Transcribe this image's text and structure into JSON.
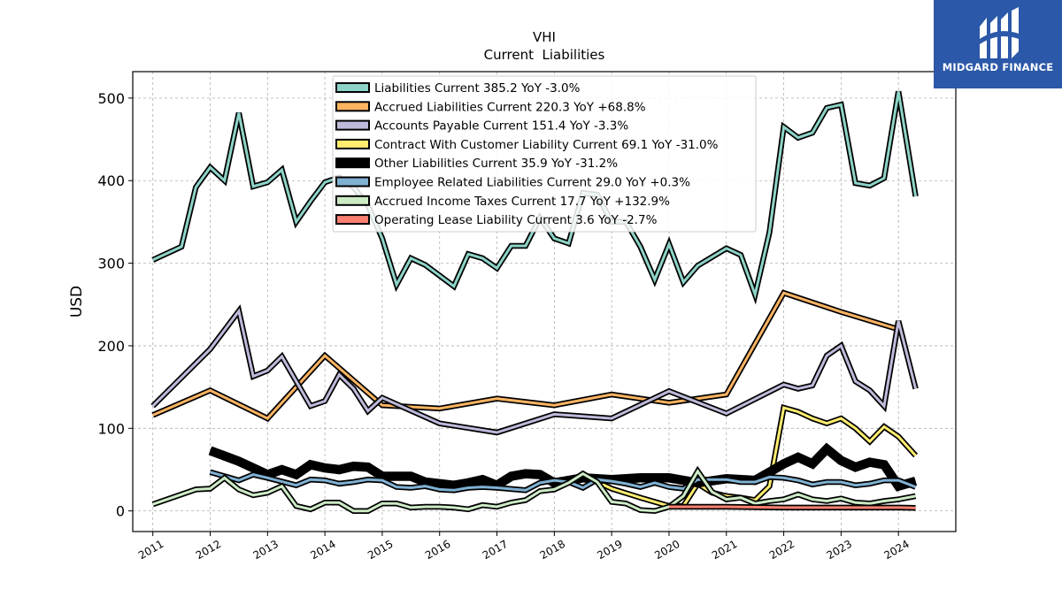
{
  "brand": {
    "name": "MIDGARD FINANCE",
    "color": "#2b58a8"
  },
  "chart_data": {
    "type": "line",
    "title": "VHI",
    "subtitle": "Current  Liabilities",
    "ylabel": "USD",
    "xlabel": "",
    "xlim": [
      2010.65,
      2025.0
    ],
    "ylim": [
      -25,
      532
    ],
    "yticks": [
      0,
      100,
      200,
      300,
      400,
      500
    ],
    "xticks": [
      2011,
      2012,
      2013,
      2014,
      2015,
      2016,
      2017,
      2018,
      2019,
      2020,
      2021,
      2022,
      2023,
      2024
    ],
    "grid": true,
    "legend_position": "top-center",
    "series": [
      {
        "name": "Liabilities Current  385.2 YoY -3.0%",
        "color": "#8dd3c7",
        "width": 3,
        "points": [
          [
            2011.0,
            304
          ],
          [
            2011.5,
            320
          ],
          [
            2011.75,
            392
          ],
          [
            2012.0,
            416
          ],
          [
            2012.25,
            400
          ],
          [
            2012.5,
            482
          ],
          [
            2012.75,
            393
          ],
          [
            2013.0,
            398
          ],
          [
            2013.25,
            413
          ],
          [
            2013.5,
            350
          ],
          [
            2013.75,
            375
          ],
          [
            2014.0,
            398
          ],
          [
            2014.25,
            404
          ],
          [
            2014.5,
            392
          ],
          [
            2014.75,
            370
          ],
          [
            2015.0,
            330
          ],
          [
            2015.25,
            274
          ],
          [
            2015.5,
            306
          ],
          [
            2015.75,
            298
          ],
          [
            2016.0,
            285
          ],
          [
            2016.25,
            272
          ],
          [
            2016.5,
            311
          ],
          [
            2016.75,
            306
          ],
          [
            2017.0,
            294
          ],
          [
            2017.25,
            321
          ],
          [
            2017.5,
            321
          ],
          [
            2017.75,
            355
          ],
          [
            2018.0,
            330
          ],
          [
            2018.25,
            324
          ],
          [
            2018.5,
            385
          ],
          [
            2018.75,
            383
          ],
          [
            2019.0,
            350
          ],
          [
            2019.25,
            350
          ],
          [
            2019.5,
            320
          ],
          [
            2019.75,
            280
          ],
          [
            2020.0,
            323
          ],
          [
            2020.25,
            277
          ],
          [
            2020.5,
            297
          ],
          [
            2021.0,
            318
          ],
          [
            2021.25,
            310
          ],
          [
            2021.5,
            262
          ],
          [
            2021.75,
            337
          ],
          [
            2022.0,
            465
          ],
          [
            2022.25,
            452
          ],
          [
            2022.5,
            458
          ],
          [
            2022.75,
            488
          ],
          [
            2023.0,
            492
          ],
          [
            2023.25,
            397
          ],
          [
            2023.5,
            394
          ],
          [
            2023.75,
            403
          ],
          [
            2024.0,
            508
          ],
          [
            2024.3,
            381
          ]
        ]
      },
      {
        "name": "Accrued Liabilities Current  220.3 YoY +68.8%",
        "color": "#fdb462",
        "width": 3,
        "points": [
          [
            2011.0,
            116
          ],
          [
            2012.0,
            146
          ],
          [
            2013.0,
            112
          ],
          [
            2014.0,
            188
          ],
          [
            2015.0,
            128
          ],
          [
            2016.0,
            124
          ],
          [
            2017.0,
            136
          ],
          [
            2018.0,
            128
          ],
          [
            2019.0,
            141
          ],
          [
            2020.0,
            131
          ],
          [
            2021.0,
            141
          ],
          [
            2022.0,
            264
          ],
          [
            2023.0,
            241
          ],
          [
            2024.0,
            220
          ]
        ]
      },
      {
        "name": "Accounts Payable Current  151.4 YoY -3.3%",
        "color": "#bebada",
        "width": 3,
        "points": [
          [
            2011.0,
            127
          ],
          [
            2012.0,
            196
          ],
          [
            2012.5,
            242
          ],
          [
            2012.75,
            163
          ],
          [
            2013.0,
            170
          ],
          [
            2013.25,
            187
          ],
          [
            2013.75,
            127
          ],
          [
            2014.0,
            133
          ],
          [
            2014.25,
            165
          ],
          [
            2014.5,
            148
          ],
          [
            2014.75,
            121
          ],
          [
            2015.0,
            137
          ],
          [
            2016.0,
            106
          ],
          [
            2017.0,
            95
          ],
          [
            2018.0,
            117
          ],
          [
            2019.0,
            112
          ],
          [
            2020.0,
            145
          ],
          [
            2021.0,
            118
          ],
          [
            2022.0,
            153
          ],
          [
            2022.25,
            148
          ],
          [
            2022.5,
            152
          ],
          [
            2022.75,
            188
          ],
          [
            2023.0,
            200
          ],
          [
            2023.25,
            157
          ],
          [
            2023.5,
            146
          ],
          [
            2023.75,
            127
          ],
          [
            2024.0,
            230
          ],
          [
            2024.3,
            148
          ]
        ]
      },
      {
        "name": "Contract With Customer Liability Current  69.1 YoY -31.0%",
        "color": "#ffed6f",
        "width": 3,
        "points": [
          [
            2018.5,
            43
          ],
          [
            2019.0,
            27
          ],
          [
            2019.5,
            16
          ],
          [
            2019.75,
            11
          ],
          [
            2020.0,
            6
          ],
          [
            2020.25,
            6
          ],
          [
            2020.5,
            33
          ],
          [
            2020.75,
            22
          ],
          [
            2021.0,
            18
          ],
          [
            2021.25,
            16
          ],
          [
            2021.5,
            13
          ],
          [
            2021.75,
            30
          ],
          [
            2022.0,
            125
          ],
          [
            2022.25,
            120
          ],
          [
            2022.5,
            112
          ],
          [
            2022.75,
            106
          ],
          [
            2023.0,
            112
          ],
          [
            2023.25,
            100
          ],
          [
            2023.5,
            84
          ],
          [
            2023.75,
            102
          ],
          [
            2024.0,
            90
          ],
          [
            2024.3,
            67
          ]
        ]
      },
      {
        "name": "Other Liabilities Current  35.9 YoY -31.2%",
        "color": "#000000",
        "width": 7,
        "points": [
          [
            2012.0,
            73
          ],
          [
            2012.5,
            60
          ],
          [
            2013.0,
            44
          ],
          [
            2013.25,
            50
          ],
          [
            2013.5,
            44
          ],
          [
            2013.75,
            56
          ],
          [
            2014.0,
            52
          ],
          [
            2014.25,
            50
          ],
          [
            2014.5,
            54
          ],
          [
            2014.75,
            53
          ],
          [
            2015.0,
            42
          ],
          [
            2015.5,
            42
          ],
          [
            2015.75,
            35
          ],
          [
            2016.0,
            33
          ],
          [
            2016.25,
            31
          ],
          [
            2016.5,
            34
          ],
          [
            2016.75,
            38
          ],
          [
            2017.0,
            31
          ],
          [
            2017.25,
            42
          ],
          [
            2017.5,
            45
          ],
          [
            2017.75,
            44
          ],
          [
            2018.0,
            34
          ],
          [
            2018.5,
            40
          ],
          [
            2019.0,
            38
          ],
          [
            2019.5,
            40
          ],
          [
            2020.0,
            40
          ],
          [
            2020.5,
            34
          ],
          [
            2021.0,
            39
          ],
          [
            2021.5,
            37
          ],
          [
            2021.75,
            47
          ],
          [
            2022.0,
            57
          ],
          [
            2022.25,
            65
          ],
          [
            2022.5,
            57
          ],
          [
            2022.75,
            75
          ],
          [
            2023.0,
            61
          ],
          [
            2023.25,
            53
          ],
          [
            2023.5,
            59
          ],
          [
            2023.75,
            56
          ],
          [
            2024.0,
            30
          ],
          [
            2024.3,
            36
          ]
        ]
      },
      {
        "name": "Employee Related Liabilities Current  29.0 YoY +0.3%",
        "color": "#80b1d3",
        "width": 3,
        "points": [
          [
            2012.0,
            47
          ],
          [
            2012.5,
            37
          ],
          [
            2012.75,
            44
          ],
          [
            2013.0,
            40
          ],
          [
            2013.5,
            31
          ],
          [
            2013.75,
            38
          ],
          [
            2014.0,
            37
          ],
          [
            2014.25,
            33
          ],
          [
            2014.5,
            35
          ],
          [
            2014.75,
            38
          ],
          [
            2015.0,
            37
          ],
          [
            2015.25,
            29
          ],
          [
            2015.5,
            28
          ],
          [
            2015.75,
            30
          ],
          [
            2016.0,
            26
          ],
          [
            2016.25,
            25
          ],
          [
            2016.5,
            28
          ],
          [
            2016.75,
            29
          ],
          [
            2017.0,
            28
          ],
          [
            2017.5,
            25
          ],
          [
            2017.75,
            34
          ],
          [
            2018.0,
            37
          ],
          [
            2018.25,
            35
          ],
          [
            2018.5,
            28
          ],
          [
            2018.75,
            38
          ],
          [
            2019.0,
            36
          ],
          [
            2019.25,
            33
          ],
          [
            2019.5,
            29
          ],
          [
            2019.75,
            34
          ],
          [
            2020.0,
            29
          ],
          [
            2020.25,
            27
          ],
          [
            2020.5,
            38
          ],
          [
            2021.0,
            38
          ],
          [
            2021.25,
            35
          ],
          [
            2021.5,
            35
          ],
          [
            2021.75,
            41
          ],
          [
            2022.0,
            40
          ],
          [
            2022.25,
            37
          ],
          [
            2022.5,
            32
          ],
          [
            2022.75,
            35
          ],
          [
            2023.0,
            35
          ],
          [
            2023.25,
            31
          ],
          [
            2023.5,
            33
          ],
          [
            2023.75,
            37
          ],
          [
            2024.0,
            37
          ],
          [
            2024.3,
            29
          ]
        ]
      },
      {
        "name": "Accrued Income Taxes Current  17.7 YoY +132.9%",
        "color": "#ccebc5",
        "width": 3,
        "points": [
          [
            2011.0,
            8
          ],
          [
            2011.75,
            26
          ],
          [
            2012.0,
            27
          ],
          [
            2012.25,
            40
          ],
          [
            2012.5,
            26
          ],
          [
            2012.75,
            19
          ],
          [
            2013.0,
            22
          ],
          [
            2013.25,
            30
          ],
          [
            2013.5,
            6
          ],
          [
            2013.75,
            2
          ],
          [
            2014.0,
            10
          ],
          [
            2014.25,
            10
          ],
          [
            2014.5,
            0
          ],
          [
            2014.75,
            0
          ],
          [
            2015.0,
            9
          ],
          [
            2015.25,
            9
          ],
          [
            2015.5,
            4
          ],
          [
            2015.75,
            5
          ],
          [
            2016.0,
            5
          ],
          [
            2016.25,
            4
          ],
          [
            2016.5,
            2
          ],
          [
            2016.75,
            7
          ],
          [
            2017.0,
            5
          ],
          [
            2017.25,
            10
          ],
          [
            2017.5,
            13
          ],
          [
            2017.75,
            24
          ],
          [
            2018.0,
            26
          ],
          [
            2018.25,
            34
          ],
          [
            2018.5,
            45
          ],
          [
            2018.75,
            35
          ],
          [
            2019.0,
            11
          ],
          [
            2019.25,
            9
          ],
          [
            2019.5,
            1
          ],
          [
            2019.75,
            0
          ],
          [
            2020.0,
            5
          ],
          [
            2020.25,
            18
          ],
          [
            2020.5,
            48
          ],
          [
            2020.75,
            23
          ],
          [
            2021.0,
            14
          ],
          [
            2021.25,
            16
          ],
          [
            2021.5,
            9
          ],
          [
            2021.75,
            12
          ],
          [
            2022.0,
            14
          ],
          [
            2022.25,
            20
          ],
          [
            2022.5,
            14
          ],
          [
            2022.75,
            12
          ],
          [
            2023.0,
            15
          ],
          [
            2023.25,
            10
          ],
          [
            2023.5,
            9
          ],
          [
            2023.75,
            12
          ],
          [
            2024.0,
            14
          ],
          [
            2024.3,
            18
          ]
        ]
      },
      {
        "name": "Operating Lease Liability Current  3.6 YoY -2.7%",
        "color": "#fb8072",
        "width": 3,
        "points": [
          [
            2020.0,
            5
          ],
          [
            2021.0,
            5
          ],
          [
            2022.0,
            4
          ],
          [
            2023.0,
            4
          ],
          [
            2024.0,
            4
          ],
          [
            2024.3,
            3.6
          ]
        ]
      }
    ]
  }
}
